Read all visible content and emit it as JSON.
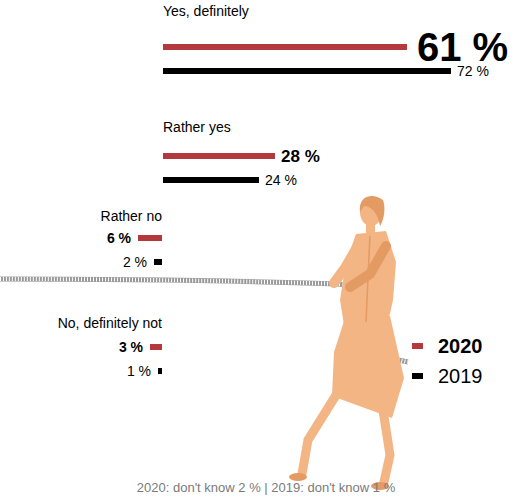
{
  "chart_data": {
    "type": "bar",
    "orientation": "horizontal",
    "categories": [
      "Yes, definitely",
      "Rather yes",
      "Rather no",
      "No, definitely not"
    ],
    "series": [
      {
        "name": "2020",
        "color": "#b3393d",
        "values": [
          61,
          28,
          6,
          3
        ],
        "value_labels": [
          "61 %",
          "28 %",
          "6 %",
          "3 %"
        ]
      },
      {
        "name": "2019",
        "color": "#000000",
        "values": [
          72,
          24,
          2,
          1
        ],
        "value_labels": [
          "72 %",
          "24 %",
          "2 %",
          "1 %"
        ]
      }
    ],
    "data_labels": true,
    "tick_labels": false,
    "legend": "right",
    "annotations": [
      "2020: don't know 2 % | 2019: don't know 1 %"
    ]
  }
}
